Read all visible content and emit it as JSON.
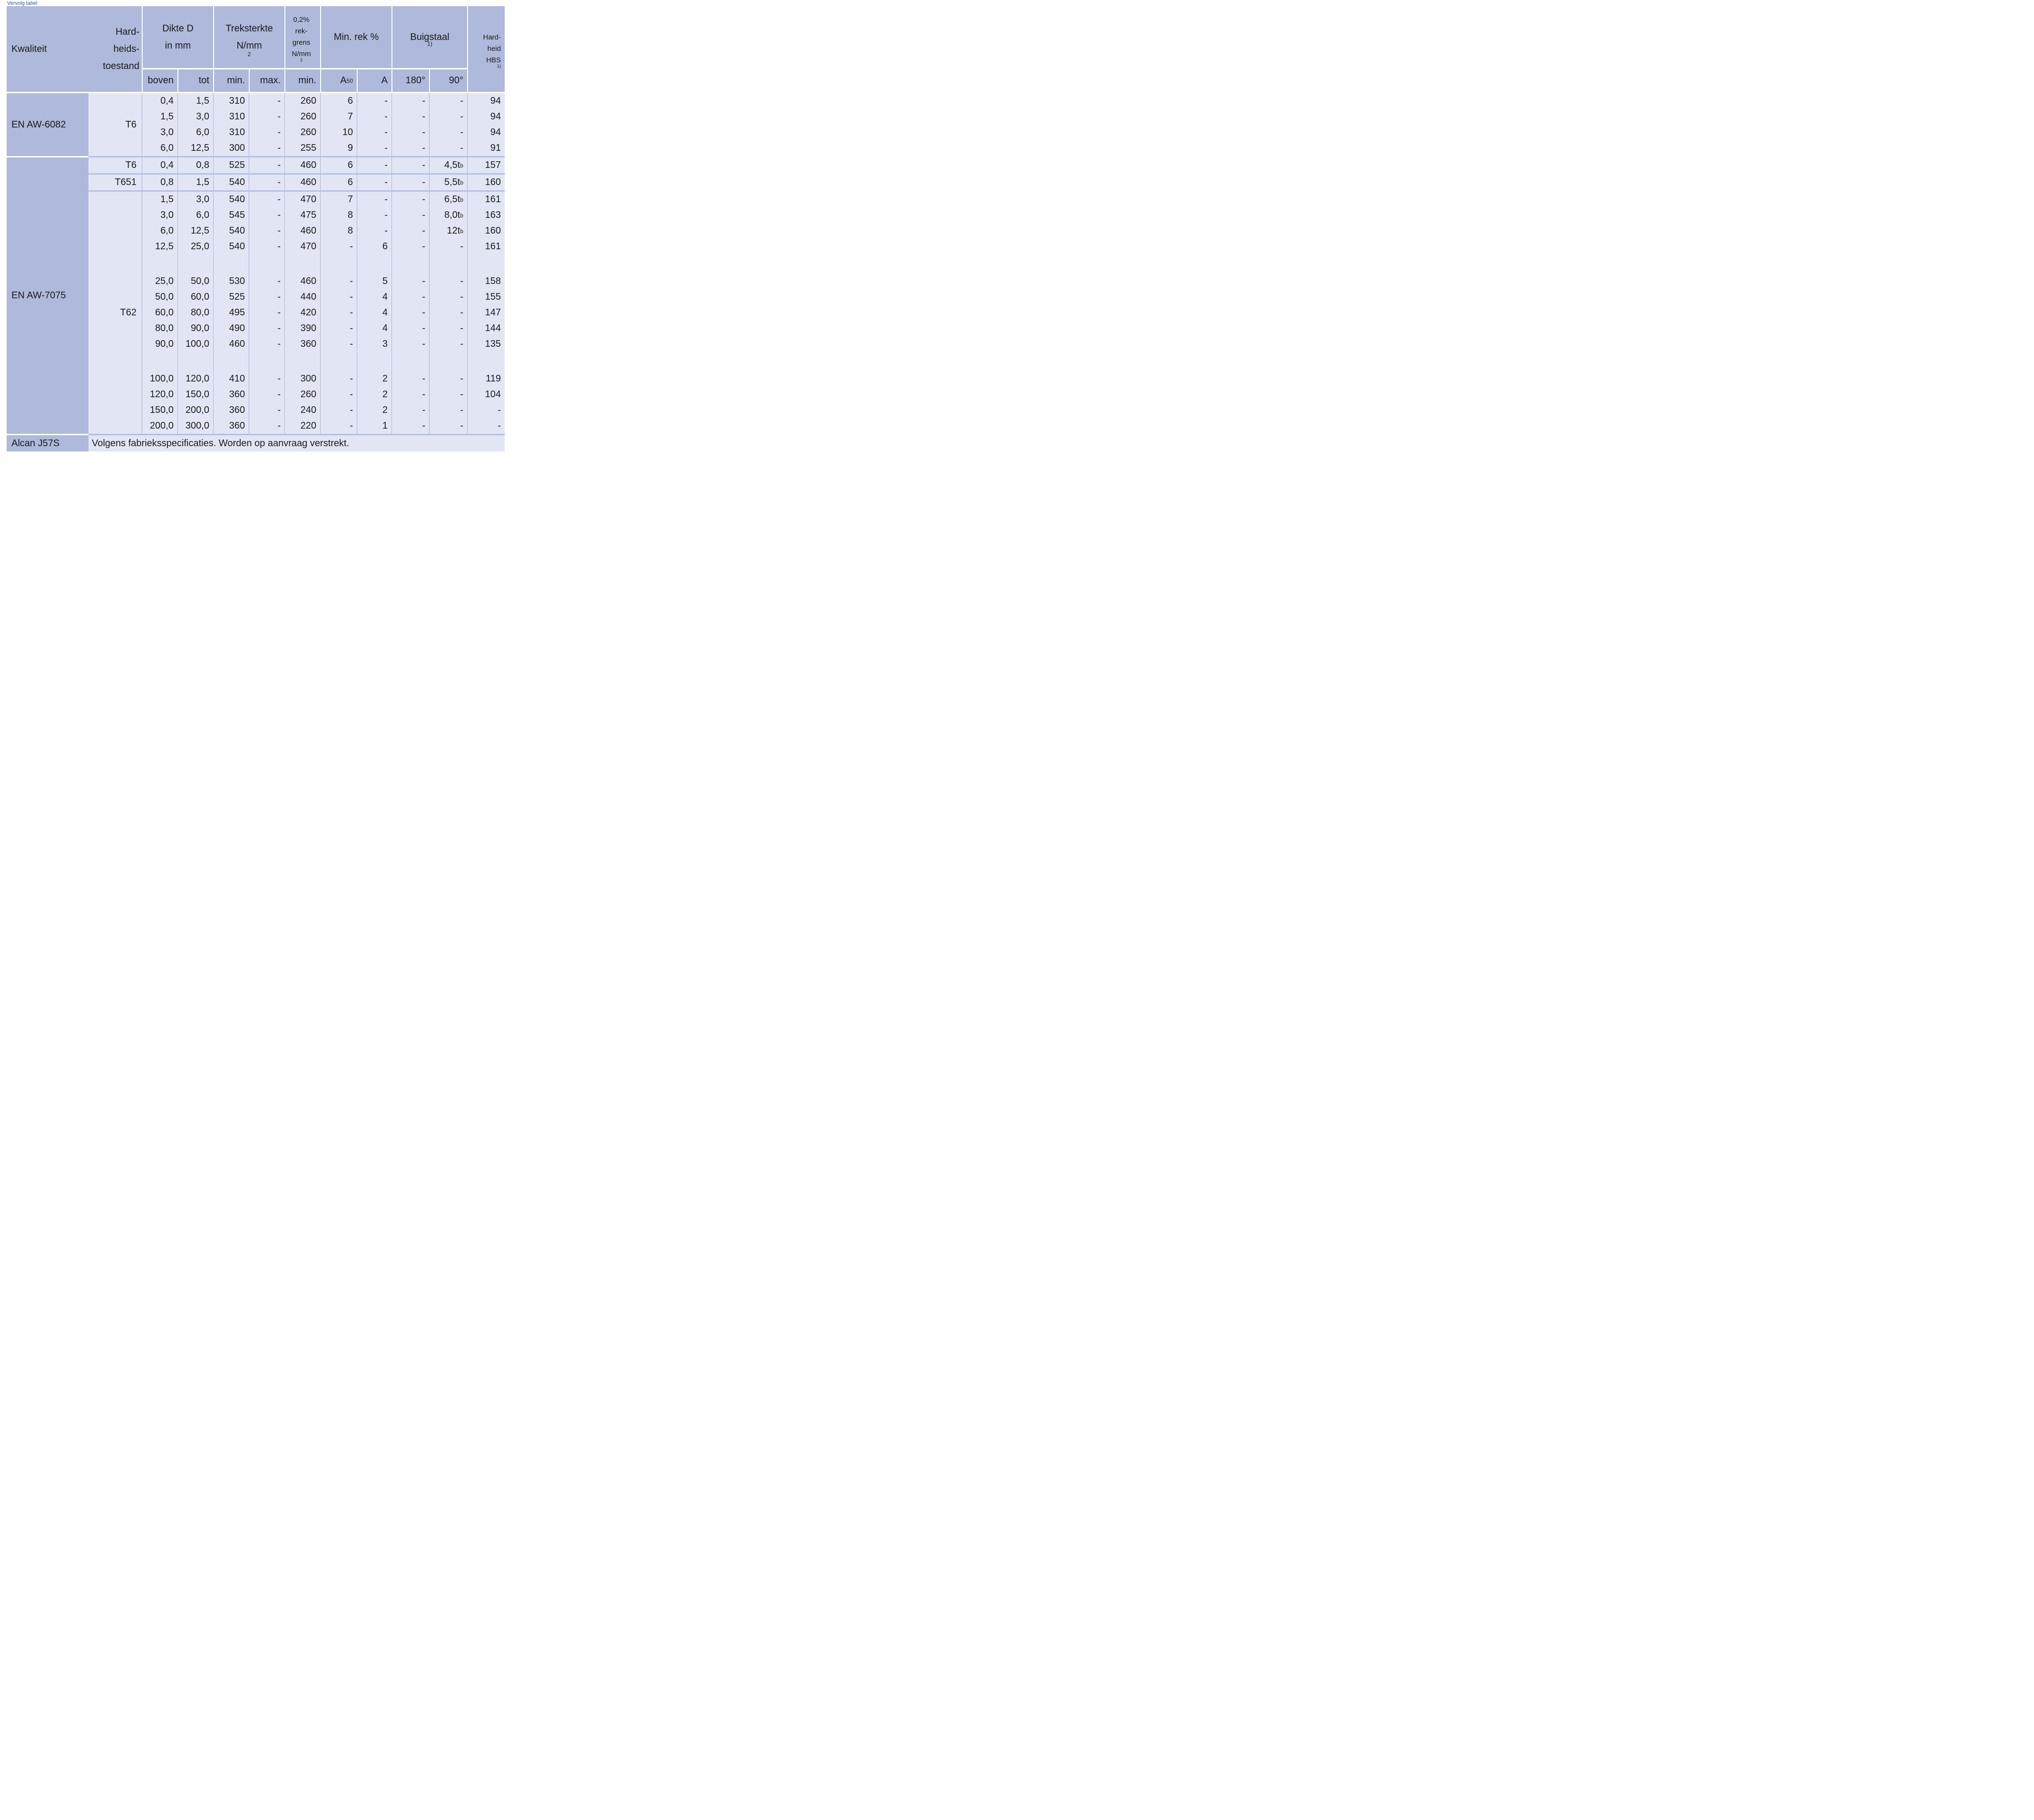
{
  "title": "Vervolg tabel",
  "colors": {
    "header_bg": "#aeb9db",
    "cell_bg": "#e2e6f4",
    "grid_line": "#a9b5d8",
    "block_separator": "#b3c0e0",
    "white_separator": "#ffffff",
    "text": "#1a1a1a",
    "title_text": "#2b5aa7"
  },
  "header": {
    "kwaliteit": "Kwaliteit",
    "toestand_lines": [
      "Hard-",
      "heids-",
      "toestand"
    ],
    "dikte_lines": [
      "Dikte D",
      "in mm"
    ],
    "treksterkte_lines": [
      "Treksterkte",
      "N/mm^{2}"
    ],
    "rekgrens_lines": [
      "0,2%",
      "rek-",
      "grens",
      "N/mm^{2}"
    ],
    "minrek": "Min. rek %",
    "buigstaal": "Buigstaal^{1)}",
    "hardheid_lines": [
      "Hard-",
      "heid",
      "HBS^{1)}"
    ],
    "sub": [
      "boven",
      "tot",
      "min.",
      "max.",
      "min.",
      "A_{50}",
      "A",
      "180°",
      "90°"
    ]
  },
  "body": {
    "groups": [
      {
        "kwaliteit": "EN AW-6082",
        "blocks": [
          {
            "toestand": "T6",
            "subblocks": [
              [
                [
                  "0,4",
                  "1,5",
                  "310",
                  "-",
                  "260",
                  "6",
                  "-",
                  "-",
                  "-",
                  "94"
                ],
                [
                  "1,5",
                  "3,0",
                  "310",
                  "-",
                  "260",
                  "7",
                  "-",
                  "-",
                  "-",
                  "94"
                ],
                [
                  "3,0",
                  "6,0",
                  "310",
                  "-",
                  "260",
                  "10",
                  "-",
                  "-",
                  "-",
                  "94"
                ],
                [
                  "6,0",
                  "12,5",
                  "300",
                  "-",
                  "255",
                  "9",
                  "-",
                  "-",
                  "-",
                  "91"
                ]
              ]
            ]
          }
        ]
      },
      {
        "kwaliteit": "EN AW-7075",
        "blocks": [
          {
            "toestand": "T6",
            "subblocks": [
              [
                [
                  "0,4",
                  "0,8",
                  "525",
                  "-",
                  "460",
                  "6",
                  "-",
                  "-",
                  "4,5t^{b}",
                  "157"
                ]
              ]
            ]
          },
          {
            "toestand": "T651",
            "subblocks": [
              [
                [
                  "0,8",
                  "1,5",
                  "540",
                  "-",
                  "460",
                  "6",
                  "-",
                  "-",
                  "5,5t^{b}",
                  "160"
                ]
              ]
            ]
          },
          {
            "toestand": "T62",
            "subblocks": [
              [
                [
                  "1,5",
                  "3,0",
                  "540",
                  "-",
                  "470",
                  "7",
                  "-",
                  "-",
                  "6,5t^{b}",
                  "161"
                ],
                [
                  "3,0",
                  "6,0",
                  "545",
                  "-",
                  "475",
                  "8",
                  "-",
                  "-",
                  "8,0t^{b}",
                  "163"
                ],
                [
                  "6,0",
                  "12,5",
                  "540",
                  "-",
                  "460",
                  "8",
                  "-",
                  "-",
                  "12t^{b}",
                  "160"
                ],
                [
                  "12,5",
                  "25,0",
                  "540",
                  "-",
                  "470",
                  "-",
                  "6",
                  "-",
                  "-",
                  "161"
                ]
              ],
              [
                [
                  "25,0",
                  "50,0",
                  "530",
                  "-",
                  "460",
                  "-",
                  "5",
                  "-",
                  "-",
                  "158"
                ],
                [
                  "50,0",
                  "60,0",
                  "525",
                  "-",
                  "440",
                  "-",
                  "4",
                  "-",
                  "-",
                  "155"
                ],
                [
                  "60,0",
                  "80,0",
                  "495",
                  "-",
                  "420",
                  "-",
                  "4",
                  "-",
                  "-",
                  "147"
                ],
                [
                  "80,0",
                  "90,0",
                  "490",
                  "-",
                  "390",
                  "-",
                  "4",
                  "-",
                  "-",
                  "144"
                ],
                [
                  "90,0",
                  "100,0",
                  "460",
                  "-",
                  "360",
                  "-",
                  "3",
                  "-",
                  "-",
                  "135"
                ]
              ],
              [
                [
                  "100,0",
                  "120,0",
                  "410",
                  "-",
                  "300",
                  "-",
                  "2",
                  "-",
                  "-",
                  "119"
                ],
                [
                  "120,0",
                  "150,0",
                  "360",
                  "-",
                  "260",
                  "-",
                  "2",
                  "-",
                  "-",
                  "104"
                ],
                [
                  "150,0",
                  "200,0",
                  "360",
                  "-",
                  "240",
                  "-",
                  "2",
                  "-",
                  "-",
                  "-"
                ],
                [
                  "200,0",
                  "300,0",
                  "360",
                  "-",
                  "220",
                  "-",
                  "1",
                  "-",
                  "-",
                  "-"
                ]
              ]
            ]
          }
        ]
      }
    ],
    "footer": {
      "kwaliteit": "Alcan J57S",
      "note": "Volgens fabrieksspecificaties. Worden op aanvraag verstrekt."
    }
  }
}
